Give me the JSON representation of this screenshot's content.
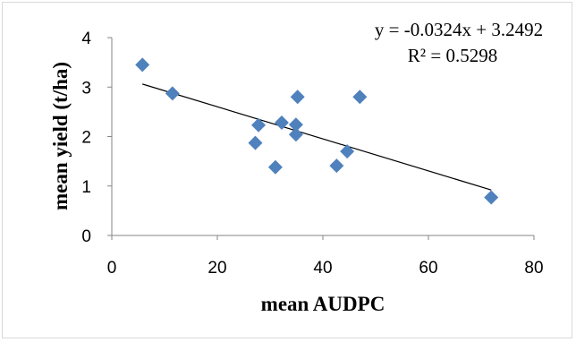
{
  "chart_data": {
    "type": "scatter",
    "title": "",
    "xlabel": "mean AUDPC",
    "ylabel": "mean yield  (t/ha)",
    "xlim": [
      0,
      80
    ],
    "ylim": [
      0,
      4
    ],
    "x_ticks": [
      "0",
      "20",
      "40",
      "60",
      "80"
    ],
    "y_ticks": [
      "0",
      "1",
      "2",
      "3",
      "4"
    ],
    "grid": false,
    "legend": "none",
    "series": [
      {
        "marker": "diamond",
        "color": "#4f81bd",
        "points": [
          {
            "x": 5.8,
            "y": 3.45
          },
          {
            "x": 11.5,
            "y": 2.87
          },
          {
            "x": 27.2,
            "y": 1.87
          },
          {
            "x": 27.8,
            "y": 2.23
          },
          {
            "x": 31.0,
            "y": 1.38
          },
          {
            "x": 32.2,
            "y": 2.28
          },
          {
            "x": 34.9,
            "y": 2.04
          },
          {
            "x": 34.9,
            "y": 2.24
          },
          {
            "x": 35.2,
            "y": 2.8
          },
          {
            "x": 42.6,
            "y": 1.41
          },
          {
            "x": 44.6,
            "y": 1.7
          },
          {
            "x": 47.0,
            "y": 2.8
          },
          {
            "x": 71.9,
            "y": 0.77
          }
        ]
      }
    ],
    "trendline": {
      "type": "linear",
      "slope": -0.0324,
      "intercept": 3.2492,
      "x_range": [
        5.8,
        71.9
      ],
      "color": "#000000",
      "equation_label": "y = -0.0324x + 3.2492",
      "r2_label": "R² = 0.5298"
    }
  }
}
